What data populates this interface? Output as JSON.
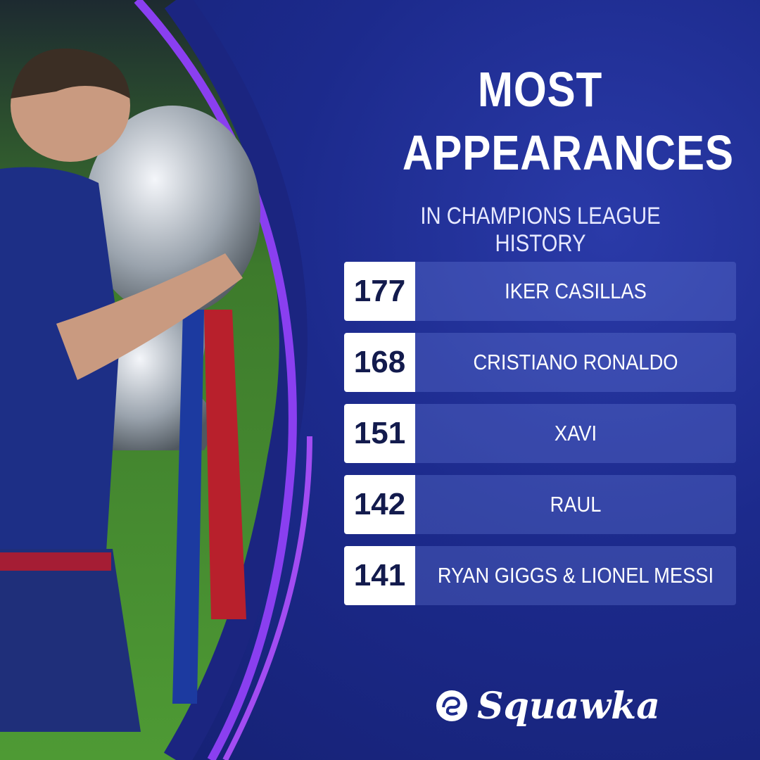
{
  "header": {
    "title": "MOST APPEARANCES",
    "subtitle": "IN CHAMPIONS LEAGUE HISTORY"
  },
  "table": {
    "rows": [
      {
        "value": 177,
        "name": "IKER CASILLAS"
      },
      {
        "value": 168,
        "name": "CRISTIANO RONALDO"
      },
      {
        "value": 151,
        "name": "XAVI"
      },
      {
        "value": 142,
        "name": "RAUL"
      },
      {
        "value": 141,
        "name": "RYAN GIGGS & LIONEL MESSI"
      }
    ]
  },
  "footer": {
    "brand": "Squawka"
  }
}
